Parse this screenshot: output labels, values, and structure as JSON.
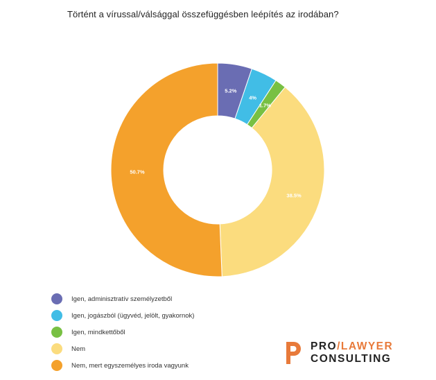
{
  "chart_data": {
    "type": "pie",
    "donut": true,
    "title": "Történt a vírussal/válsággal összefüggésben leépítés az irodában?",
    "slices": [
      {
        "label": "Igen, adminisztratív személyzetből",
        "value": 5.2,
        "display": "5.2%",
        "color": "#6a6db3"
      },
      {
        "label": "Igen, jogászból (ügyvéd, jelölt, gyakornok)",
        "value": 4,
        "display": "4%",
        "color": "#41bde6"
      },
      {
        "label": "Igen, mindkettőből",
        "value": 1.7,
        "display": "1.7%",
        "color": "#78c043"
      },
      {
        "label": "Nem",
        "value": 38.5,
        "display": "38.5%",
        "color": "#fbdc7e"
      },
      {
        "label": "Nem, mert egyszemélyes iroda vagyunk",
        "value": 50.7,
        "display": "50.7%",
        "color": "#f4a12c"
      }
    ],
    "legend_position": "bottom-left"
  },
  "logo": {
    "line1_a": "PRO",
    "line1_sep": "/",
    "line1_b": "LAWYER",
    "line2": "CONSULTING",
    "accent_color": "#e87a3a"
  }
}
